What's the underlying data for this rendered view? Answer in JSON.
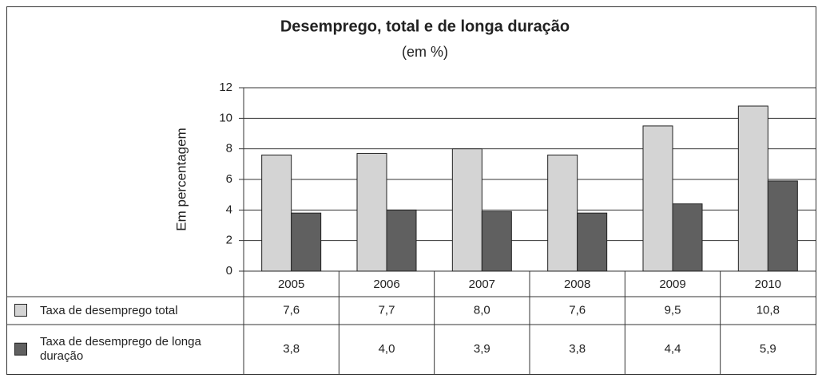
{
  "chart_data": {
    "type": "bar",
    "title": "Desemprego, total e de longa duração",
    "subtitle": "(em %)",
    "y_label": "Em percentagem",
    "categories": [
      "2005",
      "2006",
      "2007",
      "2008",
      "2009",
      "2010"
    ],
    "series": [
      {
        "name": "Taxa de desemprego total",
        "color": "#d4d4d4",
        "values": [
          7.6,
          7.7,
          8.0,
          7.6,
          9.5,
          10.8
        ],
        "value_labels": [
          "7,6",
          "7,7",
          "8,0",
          "7,6",
          "9,5",
          "10,8"
        ]
      },
      {
        "name": "Taxa de desemprego de longa duração",
        "color": "#606060",
        "values": [
          3.8,
          4.0,
          3.9,
          3.8,
          4.4,
          5.9
        ],
        "value_labels": [
          "3,8",
          "4,0",
          "3,9",
          "3,8",
          "4,4",
          "5,9"
        ]
      }
    ],
    "ylim": [
      0,
      12
    ],
    "yticks": [
      0,
      2,
      4,
      6,
      8,
      10,
      12
    ],
    "grid": true
  }
}
